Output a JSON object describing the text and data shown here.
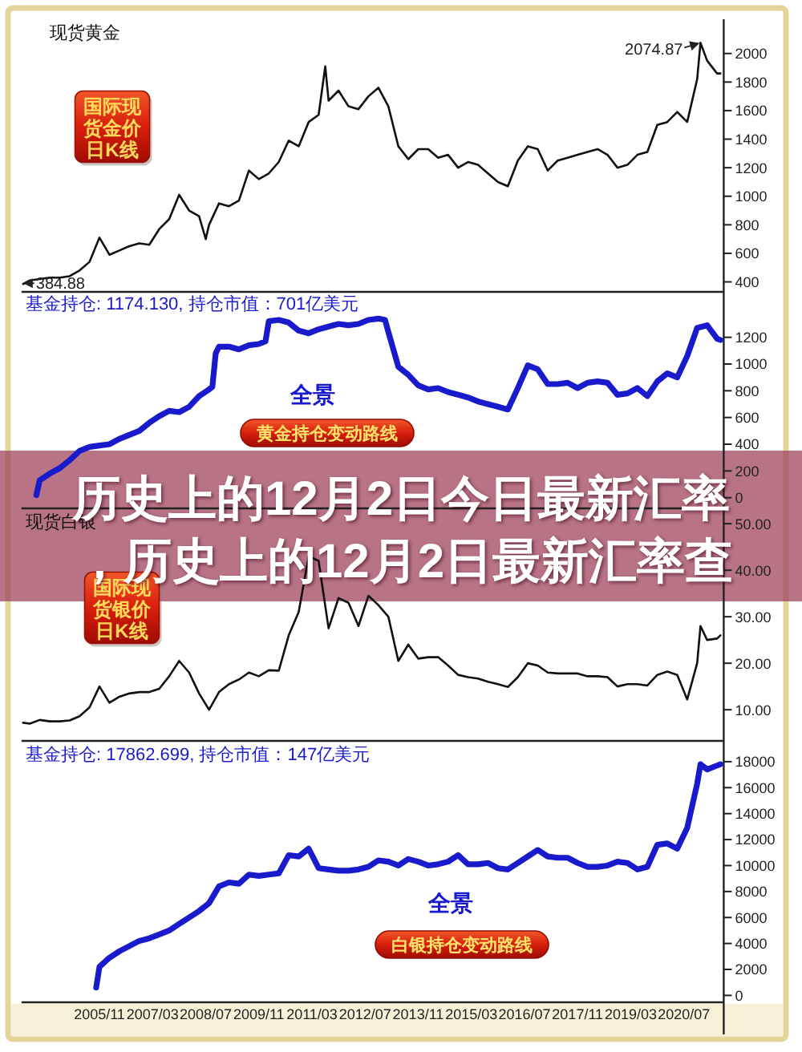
{
  "chart_data": [
    {
      "type": "line",
      "title": "现货黄金",
      "xlim": [
        "2003-12",
        "2021-07"
      ],
      "ylim": [
        330,
        2240
      ],
      "yticks": [
        400,
        600,
        800,
        1000,
        1200,
        1400,
        1600,
        1800,
        2000
      ],
      "tick_labels": "y",
      "series": [
        {
          "color": "#111111",
          "x": [
            "2003-12",
            "2004-02",
            "2004-05",
            "2004-08",
            "2004-11",
            "2005-02",
            "2005-05",
            "2005-08",
            "2005-11",
            "2006-02",
            "2006-05",
            "2006-08",
            "2006-11",
            "2007-02",
            "2007-05",
            "2007-08",
            "2007-11",
            "2008-02",
            "2008-05",
            "2008-07",
            "2008-08",
            "2008-11",
            "2009-02",
            "2009-05",
            "2009-08",
            "2009-11",
            "2010-02",
            "2010-05",
            "2010-08",
            "2010-11",
            "2011-02",
            "2011-05",
            "2011-07",
            "2011-08",
            "2011-11",
            "2012-02",
            "2012-05",
            "2012-08",
            "2012-11",
            "2013-02",
            "2013-05",
            "2013-08",
            "2013-11",
            "2014-02",
            "2014-05",
            "2014-08",
            "2014-11",
            "2015-02",
            "2015-05",
            "2015-08",
            "2015-11",
            "2016-02",
            "2016-05",
            "2016-08",
            "2016-11",
            "2017-02",
            "2017-05",
            "2017-08",
            "2017-11",
            "2018-02",
            "2018-05",
            "2018-08",
            "2018-11",
            "2019-02",
            "2019-05",
            "2019-08",
            "2019-11",
            "2020-02",
            "2020-05",
            "2020-08",
            "2020-11",
            "2020-12",
            "2021-02",
            "2021-05",
            "2021-06"
          ],
          "values": [
            384.88,
            410,
            420,
            430,
            430,
            440,
            480,
            540,
            710,
            590,
            620,
            650,
            670,
            660,
            770,
            840,
            1010,
            900,
            860,
            700,
            800,
            950,
            930,
            970,
            1180,
            1120,
            1160,
            1240,
            1390,
            1350,
            1520,
            1570,
            1910,
            1670,
            1740,
            1630,
            1610,
            1700,
            1760,
            1630,
            1350,
            1260,
            1330,
            1330,
            1270,
            1290,
            1200,
            1240,
            1220,
            1160,
            1100,
            1070,
            1250,
            1350,
            1330,
            1180,
            1250,
            1270,
            1290,
            1310,
            1330,
            1290,
            1200,
            1220,
            1290,
            1310,
            1500,
            1520,
            1590,
            1520,
            1820,
            2074.87,
            1950,
            1860,
            1860
          ]
        }
      ],
      "annotations": [
        {
          "text": "2074.87",
          "x": "2020-12",
          "y": 2074.87
        },
        {
          "text": "384.88",
          "x": "2003-12",
          "y": 384.88
        },
        "国际现货金价日K线"
      ]
    },
    {
      "type": "line",
      "title": "基金持仓: 1174.130, 持仓市值：701亿美元",
      "xlim": [
        "2003-12",
        "2021-07"
      ],
      "ylim": [
        -80,
        1540
      ],
      "yticks": [
        0,
        200,
        400,
        600,
        800,
        1000,
        1200
      ],
      "tick_labels": "y",
      "series": [
        {
          "color": "#1a1acd",
          "x": [
            "2004-04",
            "2004-05",
            "2004-08",
            "2004-11",
            "2005-02",
            "2005-05",
            "2005-08",
            "2005-11",
            "2006-02",
            "2006-05",
            "2006-08",
            "2006-11",
            "2007-02",
            "2007-05",
            "2007-08",
            "2007-11",
            "2008-02",
            "2008-05",
            "2008-08",
            "2008-09",
            "2008-10",
            "2008-11",
            "2009-02",
            "2009-05",
            "2009-08",
            "2009-11",
            "2010-01",
            "2010-02",
            "2010-05",
            "2010-08",
            "2010-11",
            "2011-02",
            "2011-05",
            "2011-08",
            "2011-11",
            "2012-02",
            "2012-05",
            "2012-08",
            "2012-11",
            "2013-01",
            "2013-02",
            "2013-05",
            "2013-08",
            "2013-11",
            "2014-02",
            "2014-05",
            "2014-08",
            "2014-11",
            "2015-02",
            "2015-05",
            "2015-08",
            "2015-11",
            "2016-02",
            "2016-05",
            "2016-08",
            "2016-11",
            "2017-02",
            "2017-05",
            "2017-08",
            "2017-11",
            "2018-02",
            "2018-05",
            "2018-08",
            "2018-11",
            "2019-02",
            "2019-05",
            "2019-08",
            "2019-11",
            "2020-02",
            "2020-05",
            "2020-08",
            "2020-11",
            "2021-02",
            "2021-05",
            "2021-06"
          ],
          "values": [
            20,
            130,
            180,
            220,
            280,
            350,
            380,
            390,
            400,
            440,
            470,
            500,
            560,
            610,
            650,
            640,
            680,
            760,
            810,
            830,
            1080,
            1130,
            1130,
            1110,
            1140,
            1150,
            1170,
            1320,
            1330,
            1310,
            1250,
            1230,
            1260,
            1280,
            1300,
            1290,
            1300,
            1330,
            1340,
            1330,
            1240,
            980,
            920,
            840,
            810,
            820,
            790,
            770,
            750,
            720,
            700,
            680,
            660,
            820,
            990,
            960,
            850,
            850,
            860,
            820,
            860,
            870,
            860,
            770,
            780,
            820,
            760,
            870,
            930,
            900,
            1060,
            1270,
            1290,
            1190,
            1180
          ]
        }
      ],
      "annotations": [
        "全景",
        "黄金持仓变动路线"
      ]
    },
    {
      "type": "other",
      "title": "历史上的12月2日今日最新汇率",
      "subtitle": "，历史上的12月2日最新汇率查"
    },
    {
      "type": "line",
      "title": "现货白银",
      "xlim": [
        "2003-12",
        "2021-07"
      ],
      "ylim": [
        3.3,
        53.3
      ],
      "yticks": [
        {
          "value": 10,
          "label": "10.00"
        },
        {
          "value": 20,
          "label": "20.00"
        },
        {
          "value": 30,
          "label": "30.00"
        },
        {
          "value": 40,
          "label": "40.00"
        },
        {
          "value": 50,
          "label": "50.00"
        }
      ],
      "tick_labels": "y",
      "series": [
        {
          "color": "#111111",
          "x": [
            "2003-12",
            "2004-02",
            "2004-05",
            "2004-08",
            "2004-11",
            "2005-02",
            "2005-05",
            "2005-08",
            "2005-11",
            "2006-02",
            "2006-05",
            "2006-08",
            "2006-11",
            "2007-02",
            "2007-05",
            "2007-08",
            "2007-11",
            "2008-02",
            "2008-05",
            "2008-08",
            "2008-11",
            "2009-02",
            "2009-05",
            "2009-08",
            "2009-11",
            "2010-02",
            "2010-05",
            "2010-08",
            "2010-11",
            "2011-02",
            "2011-05",
            "2011-08",
            "2011-11",
            "2012-02",
            "2012-05",
            "2012-08",
            "2012-11",
            "2013-02",
            "2013-05",
            "2013-08",
            "2013-11",
            "2014-02",
            "2014-05",
            "2014-08",
            "2014-11",
            "2015-02",
            "2015-05",
            "2015-08",
            "2015-11",
            "2016-02",
            "2016-05",
            "2016-08",
            "2016-11",
            "2017-02",
            "2017-05",
            "2017-08",
            "2017-11",
            "2018-02",
            "2018-05",
            "2018-08",
            "2018-11",
            "2019-02",
            "2019-05",
            "2019-08",
            "2019-11",
            "2020-02",
            "2020-05",
            "2020-08",
            "2020-11",
            "2020-12",
            "2021-02",
            "2021-05",
            "2021-06"
          ],
          "values": [
            7.2,
            7.0,
            7.8,
            7.5,
            7.5,
            7.7,
            8.6,
            10.5,
            15.0,
            11.5,
            12.8,
            13.5,
            13.8,
            13.8,
            14.5,
            17.2,
            20.5,
            18.0,
            13.5,
            10.0,
            13.8,
            15.5,
            16.5,
            18.0,
            17.2,
            18.5,
            18.4,
            26.0,
            31.0,
            43.0,
            42.0,
            27.5,
            34.0,
            33.0,
            28.0,
            34.5,
            32.5,
            30.0,
            20.5,
            24.0,
            21.0,
            21.3,
            21.3,
            19.5,
            17.5,
            17.0,
            16.7,
            16.0,
            15.5,
            14.9,
            17.0,
            20.0,
            19.5,
            18.0,
            17.8,
            17.8,
            17.8,
            17.2,
            17.2,
            17.0,
            15.0,
            15.5,
            15.5,
            15.2,
            17.5,
            18.2,
            17.5,
            12.2,
            20.0,
            28.0,
            25.0,
            25.3,
            26.0
          ]
        }
      ],
      "annotations": [
        "国际现货银价日K线"
      ]
    },
    {
      "type": "line",
      "title": "基金持仓: 17862.699, 持仓市值：147亿美元",
      "xlim": [
        "2003-12",
        "2021-07"
      ],
      "ylim": [
        -530,
        19600
      ],
      "yticks": [
        0,
        2000,
        4000,
        6000,
        8000,
        10000,
        12000,
        14000,
        16000,
        18000
      ],
      "xticks": [
        {
          "value": "2005-11",
          "label": "2005/11"
        },
        {
          "value": "2007-03",
          "label": "2007/03"
        },
        {
          "value": "2008-07",
          "label": "2008/07"
        },
        {
          "value": "2009-11",
          "label": "2009/11"
        },
        {
          "value": "2011-03",
          "label": "2011/03"
        },
        {
          "value": "2012-07",
          "label": "2012/07"
        },
        {
          "value": "2013-11",
          "label": "2013/11"
        },
        {
          "value": "2015-03",
          "label": "2015/03"
        },
        {
          "value": "2016-07",
          "label": "2016/07"
        },
        {
          "value": "2017-11",
          "label": "2017/11"
        },
        {
          "value": "2019-03",
          "label": "2019/03"
        },
        {
          "value": "2020-07",
          "label": "2020/07"
        }
      ],
      "series": [
        {
          "color": "#1a1acd",
          "x": [
            "2005-10",
            "2005-11",
            "2006-02",
            "2006-05",
            "2006-08",
            "2006-11",
            "2007-02",
            "2007-05",
            "2007-08",
            "2007-11",
            "2008-02",
            "2008-05",
            "2008-08",
            "2008-11",
            "2009-02",
            "2009-05",
            "2009-08",
            "2009-11",
            "2010-02",
            "2010-05",
            "2010-08",
            "2010-11",
            "2011-02",
            "2011-05",
            "2011-08",
            "2011-11",
            "2012-02",
            "2012-05",
            "2012-08",
            "2012-11",
            "2013-02",
            "2013-05",
            "2013-08",
            "2013-11",
            "2014-02",
            "2014-05",
            "2014-08",
            "2014-11",
            "2015-02",
            "2015-05",
            "2015-08",
            "2015-11",
            "2016-02",
            "2016-05",
            "2016-08",
            "2016-11",
            "2017-02",
            "2017-05",
            "2017-08",
            "2017-11",
            "2018-02",
            "2018-05",
            "2018-08",
            "2018-11",
            "2019-02",
            "2019-05",
            "2019-08",
            "2019-11",
            "2020-02",
            "2020-05",
            "2020-08",
            "2020-11",
            "2020-12",
            "2021-02",
            "2021-05",
            "2021-06"
          ],
          "values": [
            600,
            2200,
            2900,
            3400,
            3800,
            4200,
            4400,
            4700,
            5000,
            5500,
            6000,
            6500,
            7100,
            8400,
            8700,
            8600,
            9300,
            9200,
            9300,
            9400,
            10800,
            10700,
            11300,
            9800,
            9700,
            9600,
            9600,
            9700,
            9900,
            10400,
            10300,
            10000,
            10500,
            10300,
            10000,
            10100,
            10300,
            10800,
            10100,
            10100,
            10200,
            9800,
            9700,
            10200,
            10700,
            11200,
            10700,
            10600,
            10600,
            10200,
            9900,
            9900,
            10000,
            10300,
            10200,
            9700,
            9900,
            11600,
            11700,
            11300,
            12900,
            16300,
            17800,
            17400,
            17700,
            17800
          ]
        }
      ],
      "annotations": [
        "全景",
        "白银持仓变动路线"
      ]
    }
  ]
}
